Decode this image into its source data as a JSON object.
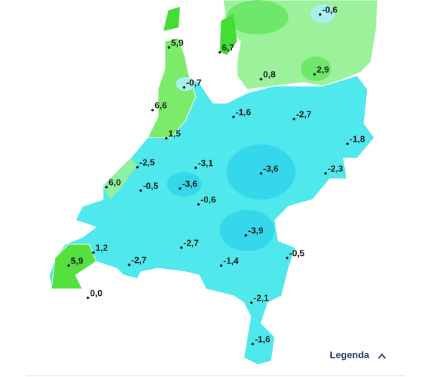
{
  "map": {
    "labels": [
      "-0,6",
      "5,9",
      "6,7",
      "0,8",
      "2,9",
      "-0,7",
      "6,6",
      "-1,6",
      "-2,7",
      "1,5",
      "-1,8",
      "-2,5",
      "-3,1",
      "-3,6",
      "-2,3",
      "6,0",
      "-0,5",
      "-3,6",
      "-0,6",
      "-3,9",
      "1,2",
      "-2,7",
      "-0,5",
      "5,9",
      "-2,7",
      "-1,4",
      "0,0",
      "-2,1",
      "-1,6"
    ]
  },
  "legend": {
    "label": "Legenda"
  }
}
